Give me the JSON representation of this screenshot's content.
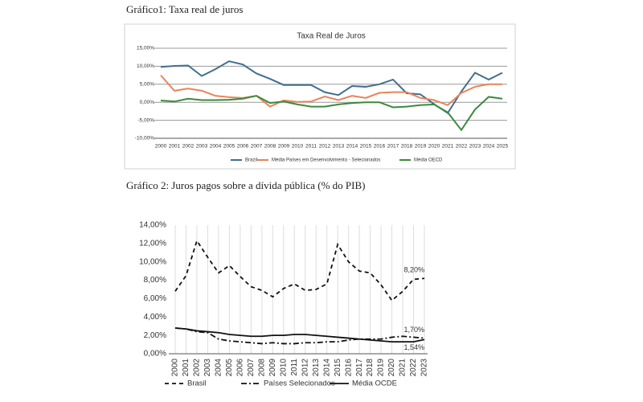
{
  "chart_data": [
    {
      "type": "line",
      "heading": "Gráfico1: Taxa real de juros",
      "title": "Taxa Real de Juros",
      "categories": [
        "2000",
        "2001",
        "2002",
        "2003",
        "2004",
        "2005",
        "2006",
        "2007",
        "2008",
        "2009",
        "2010",
        "2011",
        "2012",
        "2013",
        "2014",
        "2015",
        "2016",
        "2017",
        "2018",
        "2019",
        "2020",
        "2021",
        "2022",
        "2023",
        "2024",
        "2025"
      ],
      "series": [
        {
          "name": "Brazil",
          "color": "#3f6f8e",
          "line_style": "solid",
          "values": [
            9.8,
            10.1,
            10.2,
            7.3,
            9.2,
            11.4,
            10.5,
            8.0,
            6.5,
            4.8,
            4.8,
            4.8,
            2.8,
            2.0,
            4.5,
            4.3,
            5.0,
            6.3,
            2.5,
            2.2,
            -0.5,
            -3.0,
            3.0,
            8.2,
            6.3,
            8.2
          ]
        },
        {
          "name": "Média Países em Desenvolvimento - Selecionados",
          "color": "#e8845a",
          "line_style": "solid",
          "values": [
            7.5,
            3.2,
            3.8,
            3.2,
            1.8,
            1.4,
            1.2,
            1.8,
            -1.2,
            0.5,
            0.1,
            0.2,
            1.6,
            0.6,
            1.8,
            1.2,
            2.6,
            2.8,
            2.8,
            1.2,
            0.6,
            -0.8,
            2.6,
            4.3,
            5.0,
            5.0
          ]
        },
        {
          "name": "Média OECD",
          "color": "#3c8a3c",
          "line_style": "solid",
          "values": [
            0.5,
            0.2,
            1.0,
            0.6,
            0.6,
            0.7,
            1.0,
            1.8,
            -0.2,
            0.2,
            -0.6,
            -1.2,
            -1.2,
            -0.6,
            -0.2,
            0.0,
            0.0,
            -1.4,
            -1.2,
            -0.8,
            -0.6,
            -2.8,
            -7.7,
            -2.0,
            1.5,
            1.0
          ]
        }
      ],
      "ylim": [
        -10,
        15
      ],
      "yticks": [
        {
          "value": -10,
          "label": "-10,00%"
        },
        {
          "value": -5,
          "label": "-5,00%"
        },
        {
          "value": 0,
          "label": "0,00%"
        },
        {
          "value": 5,
          "label": "5,00%"
        },
        {
          "value": 10,
          "label": "10,00%"
        },
        {
          "value": 15,
          "label": "15,00%"
        }
      ],
      "grid": "y",
      "legend": "bottom"
    },
    {
      "type": "line",
      "heading": "Gráfico 2: Juros pagos sobre a dívida pública (% do PIB)",
      "categories": [
        "2000",
        "2001",
        "2002",
        "2003",
        "2004",
        "2005",
        "2006",
        "2007",
        "2008",
        "2009",
        "2010",
        "2011",
        "2012",
        "2013",
        "2014",
        "2015",
        "2016",
        "2017",
        "2018",
        "2019",
        "2020",
        "2021",
        "2022",
        "2023"
      ],
      "series": [
        {
          "name": "Brasil",
          "color": "#111111",
          "line_style": "dashed",
          "values": [
            6.8,
            8.5,
            12.3,
            10.5,
            8.8,
            9.6,
            8.4,
            7.3,
            6.9,
            6.2,
            7.1,
            7.6,
            6.9,
            7.0,
            7.6,
            11.9,
            10.0,
            9.0,
            8.8,
            7.5,
            5.8,
            6.8,
            8.1,
            8.2
          ],
          "value_labels": [
            null,
            null,
            null,
            null,
            null,
            null,
            null,
            null,
            null,
            null,
            null,
            null,
            null,
            null,
            null,
            null,
            null,
            null,
            null,
            null,
            null,
            null,
            null,
            "8,20%"
          ]
        },
        {
          "name": "Países Selecionados",
          "color": "#111111",
          "line_style": "dashdot",
          "values": [
            2.8,
            2.7,
            2.4,
            2.3,
            1.6,
            1.4,
            1.3,
            1.2,
            1.1,
            1.2,
            1.1,
            1.1,
            1.2,
            1.2,
            1.3,
            1.3,
            1.5,
            1.6,
            1.6,
            1.6,
            1.8,
            1.9,
            1.8,
            1.7
          ],
          "value_labels": [
            null,
            null,
            null,
            null,
            null,
            null,
            null,
            null,
            null,
            null,
            null,
            null,
            null,
            null,
            null,
            null,
            null,
            null,
            null,
            null,
            null,
            null,
            null,
            "1,70%"
          ]
        },
        {
          "name": "Média OCDE",
          "color": "#111111",
          "line_style": "solid",
          "values": [
            2.8,
            2.7,
            2.5,
            2.4,
            2.3,
            2.1,
            2.0,
            1.9,
            1.9,
            2.0,
            2.0,
            2.1,
            2.1,
            2.0,
            1.9,
            1.8,
            1.7,
            1.6,
            1.5,
            1.4,
            1.3,
            1.3,
            1.3,
            1.54
          ],
          "value_labels": [
            null,
            null,
            null,
            null,
            null,
            null,
            null,
            null,
            null,
            null,
            null,
            null,
            null,
            null,
            null,
            null,
            null,
            null,
            null,
            null,
            null,
            null,
            null,
            "1,54%"
          ]
        }
      ],
      "ylim": [
        0,
        14
      ],
      "yticks": [
        {
          "value": 0,
          "label": "0,00%"
        },
        {
          "value": 2,
          "label": "2,00%"
        },
        {
          "value": 4,
          "label": "4,00%"
        },
        {
          "value": 6,
          "label": "6,00%"
        },
        {
          "value": 8,
          "label": "8,00%"
        },
        {
          "value": 10,
          "label": "10,00%"
        },
        {
          "value": 12,
          "label": "12,00%"
        },
        {
          "value": 14,
          "label": "14,00%"
        }
      ],
      "grid": "x",
      "legend": "bottom"
    }
  ]
}
